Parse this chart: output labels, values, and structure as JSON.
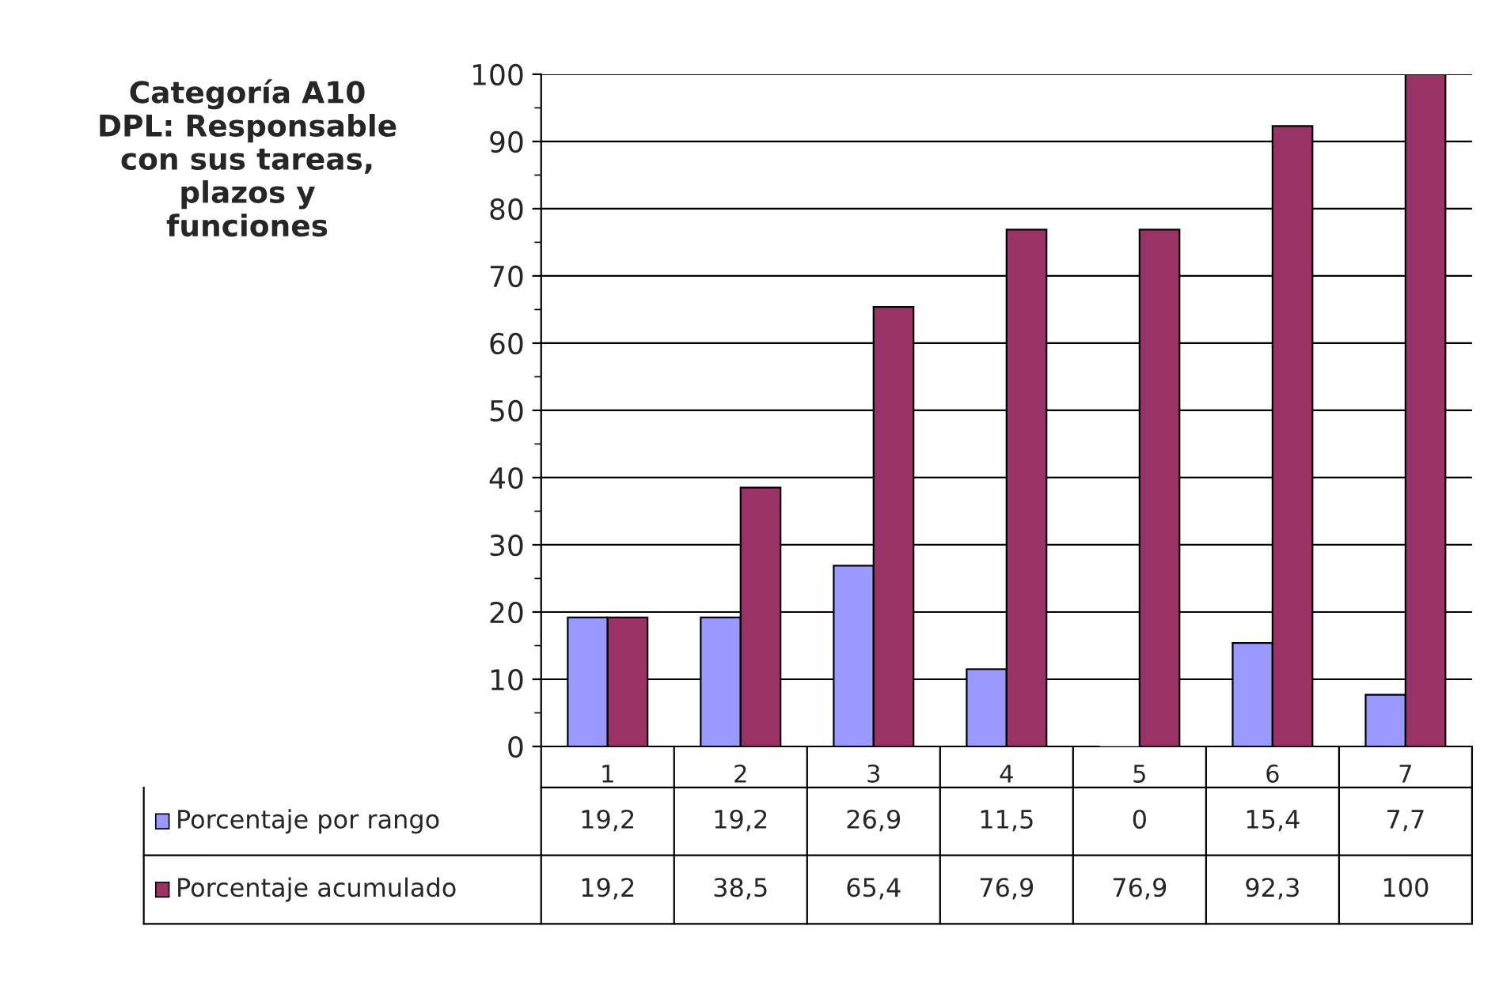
{
  "chart_data": {
    "type": "bar",
    "title": "Categoría A10\nDPL: Responsable\ncon sus tareas,\nplazos y\nfunciones",
    "categories": [
      "1",
      "2",
      "3",
      "4",
      "5",
      "6",
      "7"
    ],
    "series": [
      {
        "name": "Porcentaje por rango",
        "color": "#9999ff",
        "values": [
          19.2,
          19.2,
          26.9,
          11.5,
          0,
          15.4,
          7.7
        ],
        "value_labels": [
          "19,2",
          "19,2",
          "26,9",
          "11,5",
          "0",
          "15,4",
          "7,7"
        ]
      },
      {
        "name": "Porcentaje acumulado",
        "color": "#993366",
        "values": [
          19.2,
          38.5,
          65.4,
          76.9,
          76.9,
          92.3,
          100
        ],
        "value_labels": [
          "19,2",
          "38,5",
          "65,4",
          "76,9",
          "76,9",
          "92,3",
          "100"
        ]
      }
    ],
    "ylim": [
      0,
      100
    ],
    "yticks": [
      0,
      10,
      20,
      30,
      40,
      50,
      60,
      70,
      80,
      90,
      100
    ],
    "grid": "y",
    "legend": "bottom"
  }
}
